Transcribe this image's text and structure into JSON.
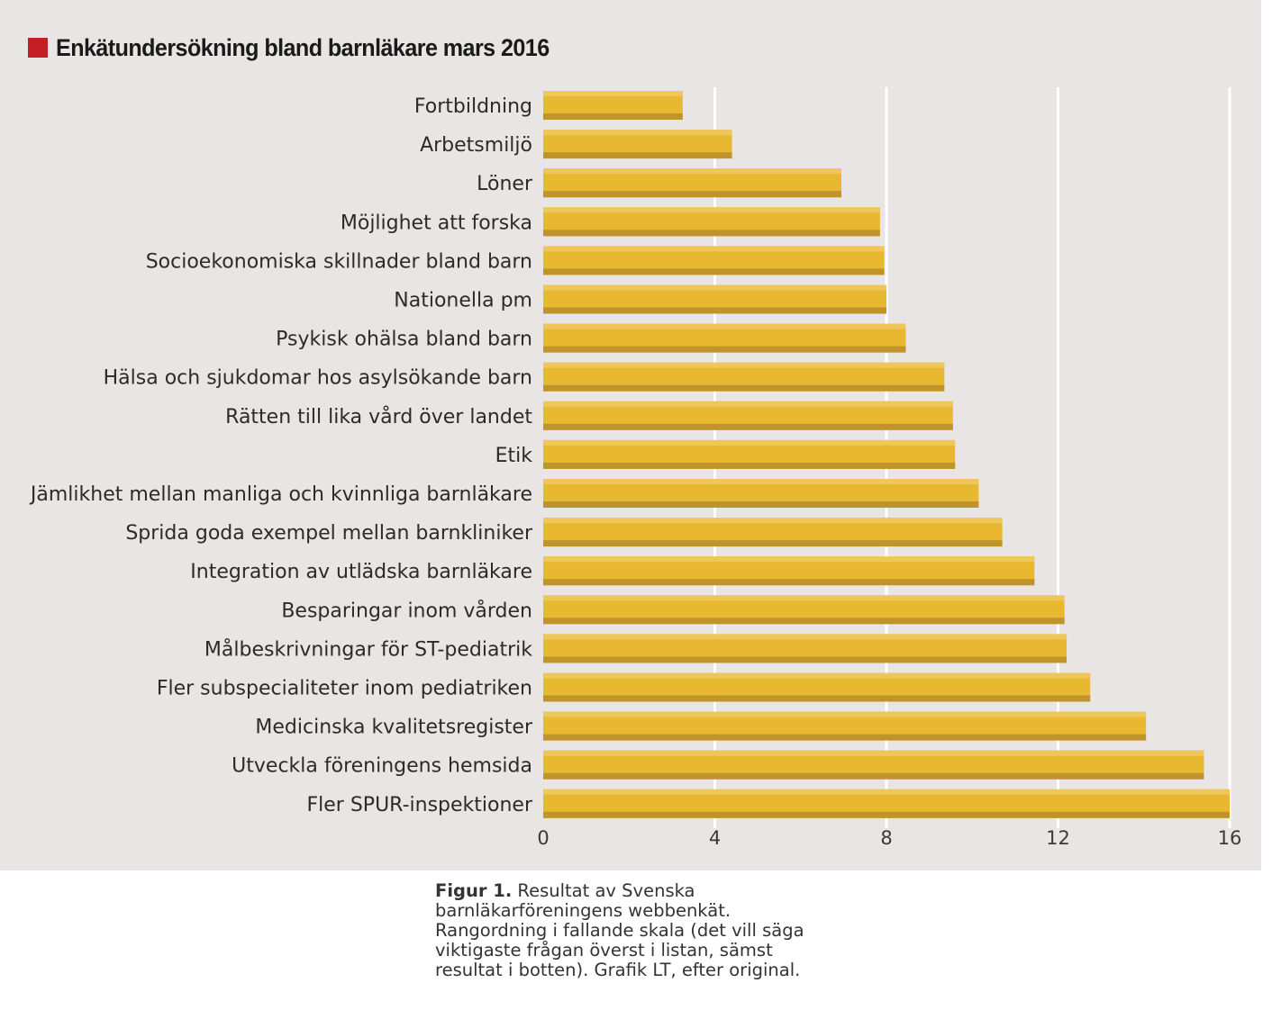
{
  "colors": {
    "panel_bg": "#e8e5e4",
    "title_swatch": "#c41e25",
    "bar_main": "#e8b830",
    "bar_highlight": "#efc65a",
    "bar_shadow": "#bf952b",
    "gridline": "#ffffff"
  },
  "chart_data": {
    "type": "bar",
    "orientation": "horizontal",
    "title": "Enkätundersökning bland barnläkare mars 2016",
    "xlabel": "",
    "ylabel": "",
    "xlim": [
      0,
      16
    ],
    "xticks": [
      0,
      4,
      8,
      12,
      16
    ],
    "xtick_labels": [
      "0",
      "4",
      "8",
      "12",
      "16"
    ],
    "grid": "vertical gridlines at ticks",
    "legend": "none",
    "categories": [
      "Fortbildning",
      "Arbetsmiljö",
      "Löner",
      "Möjlighet att forska",
      "Socioekonomiska skillnader bland barn",
      "Nationella pm",
      "Psykisk ohälsa bland barn",
      "Hälsa och sjukdomar hos asylsökande barn",
      "Rätten till lika vård över landet",
      "Etik",
      "Jämlikhet mellan manliga och kvinnliga barnläkare",
      "Sprida goda exempel mellan barnkliniker",
      "Integration av utlädska barnläkare",
      "Besparingar inom vården",
      "Målbeskrivningar för ST-pediatrik",
      "Fler subspecialiteter inom pediatriken",
      "Medicinska kvalitetsregister",
      "Utveckla föreningens hemsida",
      "Fler SPUR-inspektioner"
    ],
    "values": [
      3.25,
      4.4,
      6.95,
      7.85,
      7.95,
      8.0,
      8.45,
      9.35,
      9.55,
      9.6,
      10.15,
      10.7,
      11.45,
      12.15,
      12.2,
      12.75,
      14.05,
      15.4,
      16.0
    ]
  },
  "caption": {
    "label": "Figur 1.",
    "text": " Resultat av Svenska barnläkarföreningens webbenkät. Rangordning i fallande skala (det vill säga viktigaste frågan överst i listan, sämst resultat i botten). Grafik LT, efter original."
  }
}
